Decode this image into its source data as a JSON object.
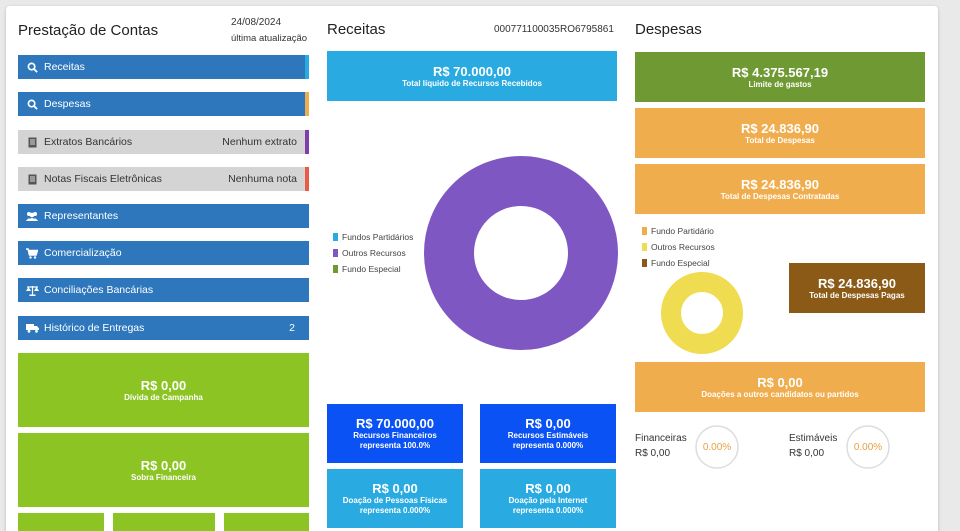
{
  "left": {
    "title": "Prestação de Contas",
    "date": "24/08/2024",
    "date_caption": "última atualização",
    "nav": [
      {
        "label": "Receitas",
        "right": ""
      },
      {
        "label": "Despesas",
        "right": ""
      },
      {
        "label": "Extratos Bancários",
        "right": "Nenhum extrato"
      },
      {
        "label": "Notas Fiscais Eletrônicas",
        "right": "Nenhuma nota"
      },
      {
        "label": "Representantes",
        "right": ""
      },
      {
        "label": "Comercialização",
        "right": ""
      },
      {
        "label": "Conciliações Bancárias",
        "right": ""
      },
      {
        "label": "Histórico de Entregas",
        "right": "2"
      }
    ],
    "divida": {
      "value": "R$ 0,00",
      "label": "Dívida de Campanha"
    },
    "sobra": {
      "value": "R$ 0,00",
      "label": "Sobra Financeira"
    }
  },
  "receitas": {
    "title": "Receitas",
    "code": "000771100035RO6795861",
    "total": {
      "value": "R$ 70.000,00",
      "label": "Total líquido de Recursos Recebidos"
    },
    "legend": [
      "Fundos Partidários",
      "Outros Recursos",
      "Fundo Especial"
    ],
    "tiles": [
      {
        "value": "R$ 70.000,00",
        "label1": "Recursos Financeiros",
        "label2": "representa 100.0%"
      },
      {
        "value": "R$ 0,00",
        "label1": "Recursos Estimáveis",
        "label2": "representa 0.000%"
      },
      {
        "value": "R$ 0,00",
        "label1": "Doação de Pessoas Físicas",
        "label2": "representa 0.000%"
      },
      {
        "value": "R$ 0,00",
        "label1": "Doação pela Internet",
        "label2": "representa 0.000%"
      }
    ]
  },
  "despesas": {
    "title": "Despesas",
    "limite": {
      "value": "R$ 4.375.567,19",
      "label": "Limite de gastos"
    },
    "total": {
      "value": "R$ 24.836,90",
      "label": "Total de Despesas"
    },
    "contratadas": {
      "value": "R$ 24.836,90",
      "label": "Total de Despesas Contratadas"
    },
    "pagas": {
      "value": "R$ 24.836,90",
      "label": "Total de Despesas Pagas"
    },
    "legend": [
      "Fundo Partidário",
      "Outros Recursos",
      "Fundo Especial"
    ],
    "doacoes": {
      "value": "R$ 0,00",
      "label": "Doações a outros candidatos ou partidos"
    },
    "financeiras": {
      "label": "Financeiras",
      "value": "R$ 0,00",
      "pct": "0.00%"
    },
    "estimaveis": {
      "label": "Estimáveis",
      "value": "R$ 0,00",
      "pct": "0.00%"
    }
  },
  "colors": {
    "blue": "#2f77bd",
    "cyan": "#29abe2",
    "royal": "#0b52f5",
    "lime": "#8cc424",
    "olive": "#6f9a33",
    "orange": "#f0ad4e",
    "brown": "#8b5a16",
    "purple": "#7e57c2",
    "yellow": "#f0dc50"
  }
}
